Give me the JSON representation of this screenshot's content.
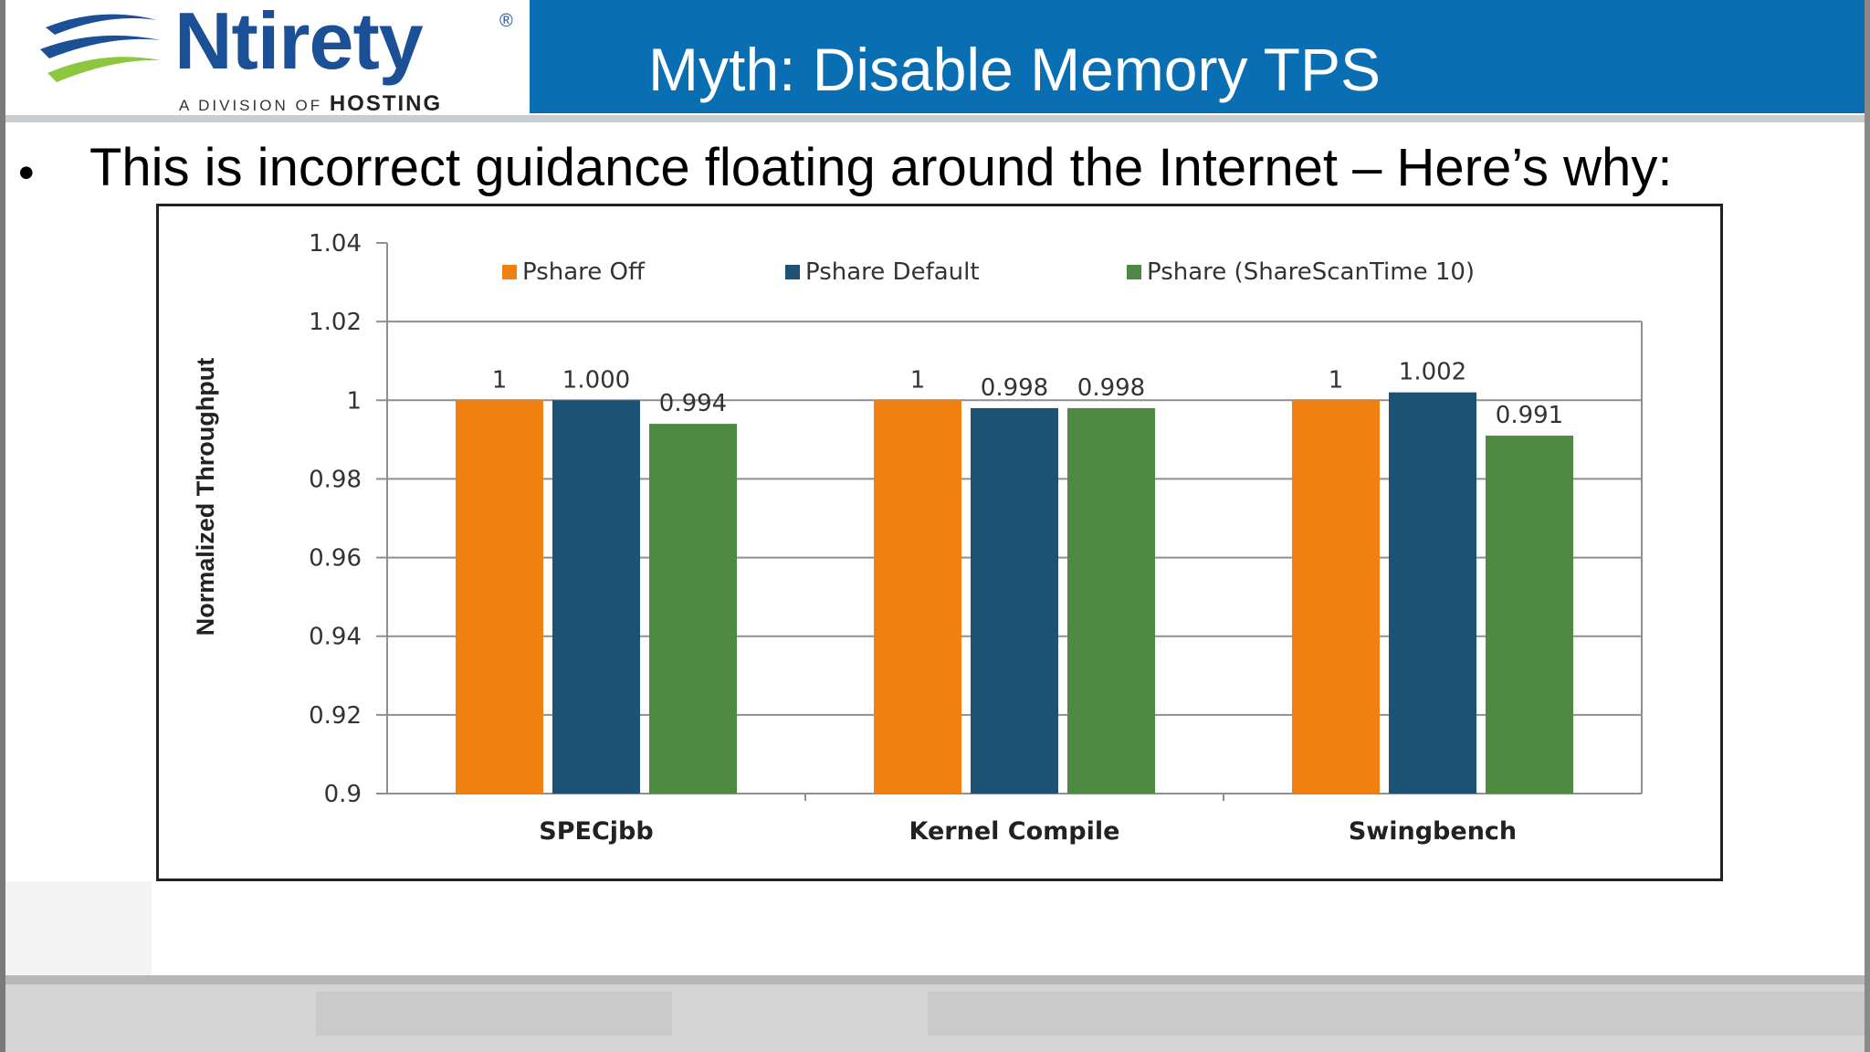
{
  "header": {
    "logo_name": "Ntirety",
    "logo_reg": "®",
    "logo_division": "A DIVISION OF",
    "logo_parent": "HOSTING",
    "title": "Myth: Disable Memory TPS",
    "brand_color": "#0a6fb2"
  },
  "bullet": {
    "text": "This is incorrect guidance floating around the Internet – Here’s why:"
  },
  "chart_data": {
    "type": "bar",
    "ylabel": "Normalized Throughput",
    "xlabel": "",
    "ylim": [
      0.9,
      1.04
    ],
    "yticks": [
      1.04,
      1.02,
      1,
      0.98,
      0.96,
      0.94,
      0.92,
      0.9
    ],
    "ytick_labels": [
      "1.04",
      "1.02",
      "1",
      "0.98",
      "0.96",
      "0.94",
      "0.92",
      "0.9"
    ],
    "grid": true,
    "legend_position": "top",
    "categories": [
      "SPECjbb",
      "Kernel Compile",
      "Swingbench"
    ],
    "series": [
      {
        "name": "Pshare Off",
        "color": "#f08010",
        "values": [
          1,
          1,
          1
        ],
        "labels": [
          "1",
          "1",
          "1"
        ]
      },
      {
        "name": "Pshare Default",
        "color": "#1d5274",
        "values": [
          1.0,
          0.998,
          1.002
        ],
        "labels": [
          "1.000",
          "0.998",
          "1.002"
        ]
      },
      {
        "name": "Pshare (ShareScanTime 10)",
        "color": "#4e8a42",
        "values": [
          0.994,
          0.998,
          0.991
        ],
        "labels": [
          "0.994",
          "0.998",
          "0.991"
        ]
      }
    ]
  }
}
